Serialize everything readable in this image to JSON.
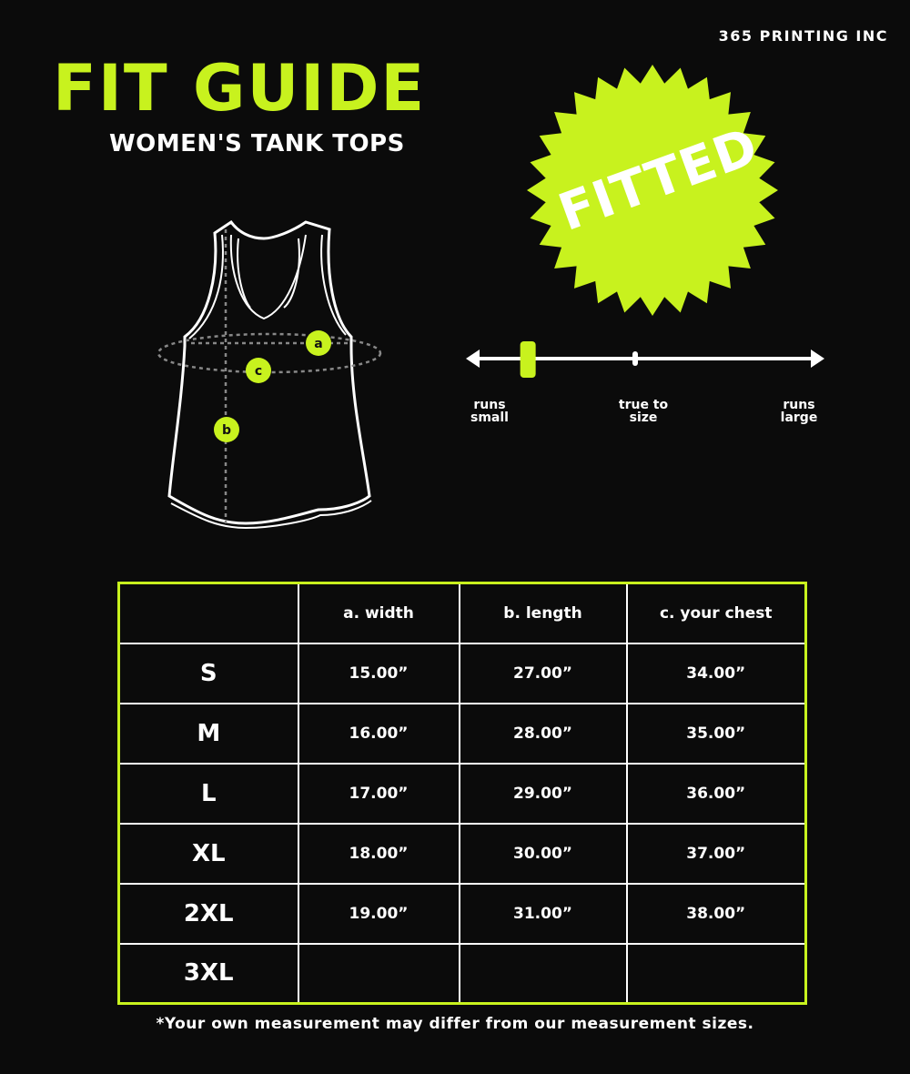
{
  "brand": "365 PRINTING INC",
  "title": "FIT GUIDE",
  "subtitle": "WOMEN'S TANK TOPS",
  "badge": {
    "label": "FITTED"
  },
  "accent_color": "#c8f21e",
  "fit_scale": {
    "labels": [
      "runs small",
      "true to size",
      "runs large"
    ],
    "value_fraction": 0.17
  },
  "diagram": {
    "markers": [
      "a",
      "b",
      "c"
    ]
  },
  "table": {
    "headers": [
      "",
      "a. width",
      "b. length",
      "c. your chest"
    ],
    "rows": [
      [
        "S",
        "15.00”",
        "27.00”",
        "34.00”"
      ],
      [
        "M",
        "16.00”",
        "28.00”",
        "35.00”"
      ],
      [
        "L",
        "17.00”",
        "29.00”",
        "36.00”"
      ],
      [
        "XL",
        "18.00”",
        "30.00”",
        "37.00”"
      ],
      [
        "2XL",
        "19.00”",
        "31.00”",
        "38.00”"
      ],
      [
        "3XL",
        "",
        "",
        ""
      ]
    ]
  },
  "footnote": "*Your own measurement may differ from our measurement sizes."
}
